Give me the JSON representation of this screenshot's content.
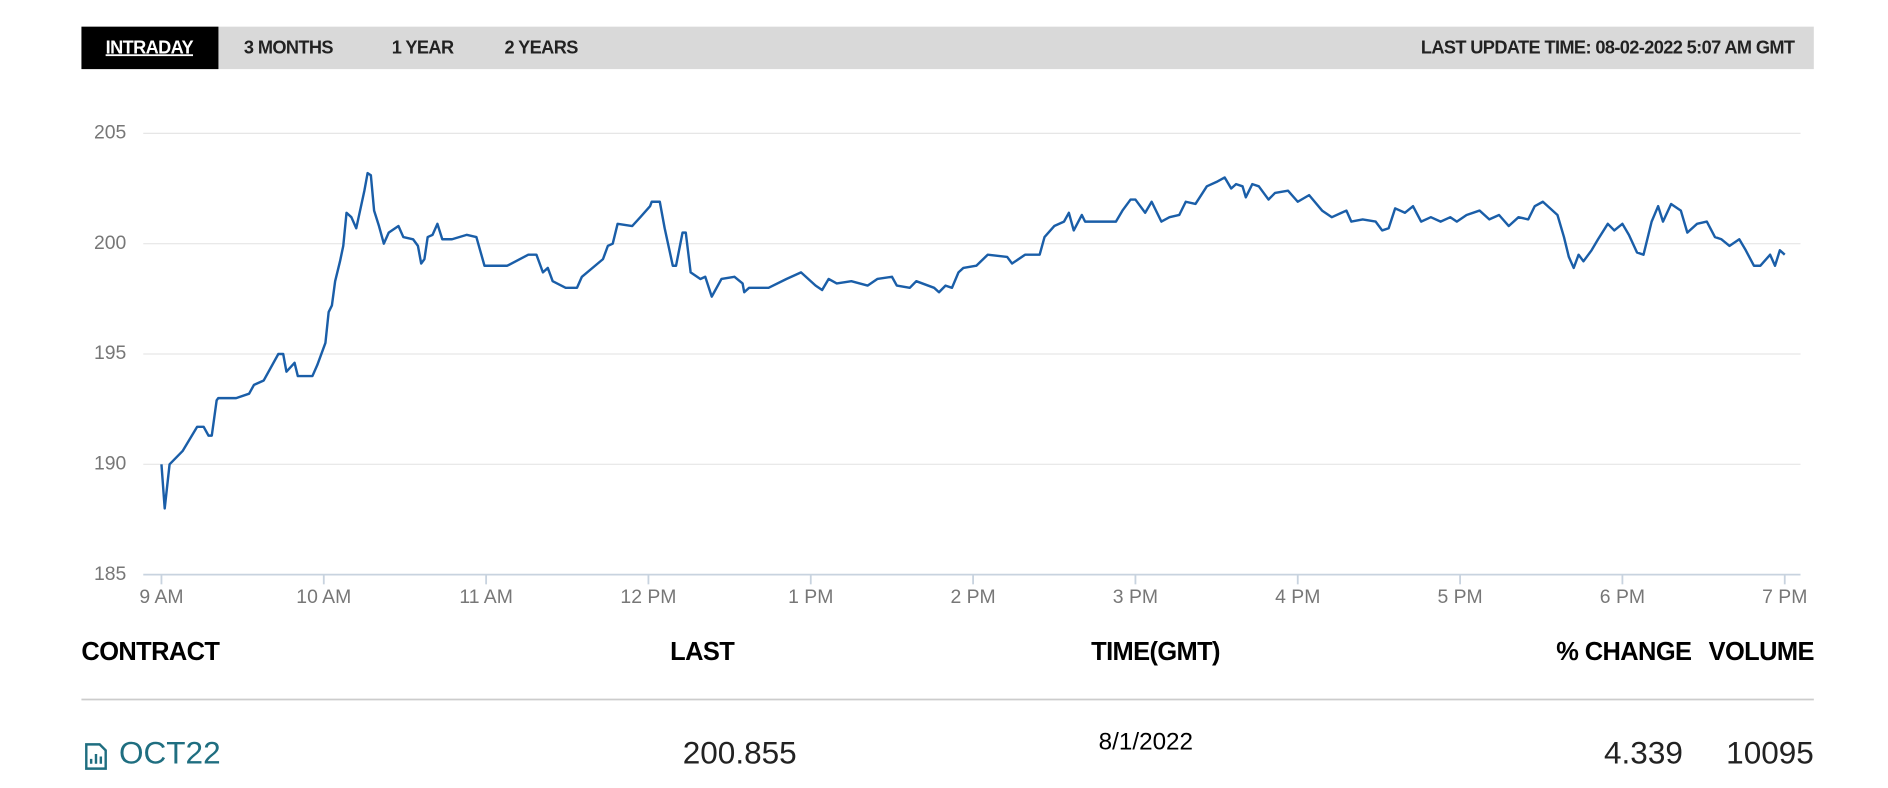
{
  "tabs": [
    "INTRADAY",
    "3 MONTHS",
    "1 YEAR",
    "2 YEARS"
  ],
  "last_update": "LAST UPDATE TIME: 08-02-2022 5:07 AM GMT",
  "chart_data": {
    "type": "line",
    "x": [
      9.0,
      9.02,
      9.05,
      9.13,
      9.22,
      9.26,
      9.29,
      9.31,
      9.34,
      9.35,
      9.46,
      9.54,
      9.57,
      9.63,
      9.72,
      9.75,
      9.77,
      9.82,
      9.84,
      9.93,
      9.96,
      10.01,
      10.03,
      10.05,
      10.07,
      10.1,
      10.12,
      10.14,
      10.17,
      10.2,
      10.25,
      10.27,
      10.29,
      10.31,
      10.34,
      10.37,
      10.4,
      10.46,
      10.49,
      10.55,
      10.58,
      10.6,
      10.62,
      10.64,
      10.67,
      10.7,
      10.73,
      10.79,
      10.88,
      10.94,
      10.99,
      11.13,
      11.26,
      11.31,
      11.35,
      11.38,
      11.41,
      11.49,
      11.56,
      11.59,
      11.72,
      11.75,
      11.78,
      11.81,
      11.9,
      11.95,
      12.01,
      12.02,
      12.07,
      12.1,
      12.15,
      12.17,
      12.21,
      12.23,
      12.26,
      12.32,
      12.35,
      12.39,
      12.45,
      12.53,
      12.58,
      12.59,
      12.62,
      12.74,
      12.85,
      12.94,
      13.03,
      13.07,
      13.11,
      13.16,
      13.25,
      13.35,
      13.41,
      13.5,
      13.53,
      13.61,
      13.65,
      13.76,
      13.79,
      13.83,
      13.87,
      13.91,
      13.94,
      14.02,
      14.09,
      14.21,
      14.24,
      14.32,
      14.41,
      14.44,
      14.5,
      14.56,
      14.59,
      14.62,
      14.67,
      14.69,
      14.88,
      14.92,
      14.97,
      15.0,
      15.06,
      15.1,
      15.16,
      15.21,
      15.27,
      15.31,
      15.37,
      15.44,
      15.5,
      15.55,
      15.59,
      15.62,
      15.66,
      15.68,
      15.72,
      15.76,
      15.82,
      15.86,
      15.94,
      16.0,
      16.07,
      16.15,
      16.21,
      16.27,
      16.3,
      16.33,
      16.4,
      16.48,
      16.52,
      16.56,
      16.6,
      16.66,
      16.71,
      16.76,
      16.82,
      16.88,
      16.94,
      16.98,
      17.04,
      17.12,
      17.18,
      17.24,
      17.3,
      17.36,
      17.42,
      17.46,
      17.51,
      17.6,
      17.64,
      17.67,
      17.7,
      17.73,
      17.76,
      17.81,
      17.85,
      17.91,
      17.95,
      18.0,
      18.04,
      18.09,
      18.13,
      18.18,
      18.22,
      18.25,
      18.3,
      18.36,
      18.4,
      18.46,
      18.52,
      18.57,
      18.61,
      18.66,
      18.72,
      18.76,
      18.81,
      18.85,
      18.91,
      18.94,
      18.97,
      19.0
    ],
    "series": [
      {
        "color": "#1a5ea8",
        "values": [
          190.0,
          188.0,
          190.0,
          190.6,
          191.7,
          191.7,
          191.3,
          191.3,
          192.9,
          193.0,
          193.0,
          193.2,
          193.6,
          193.8,
          195.0,
          195.0,
          194.2,
          194.6,
          194.0,
          194.0,
          194.5,
          195.5,
          196.9,
          197.2,
          198.3,
          199.2,
          199.9,
          201.4,
          201.2,
          200.7,
          202.4,
          203.2,
          203.1,
          201.5,
          200.8,
          200.0,
          200.5,
          200.8,
          200.3,
          200.2,
          199.9,
          199.1,
          199.3,
          200.3,
          200.4,
          200.9,
          200.2,
          200.2,
          200.4,
          200.3,
          199.0,
          199.0,
          199.5,
          199.5,
          198.7,
          198.9,
          198.3,
          198.0,
          198.0,
          198.5,
          199.3,
          199.9,
          200.0,
          200.9,
          200.8,
          201.2,
          201.7,
          201.9,
          201.9,
          200.7,
          199.0,
          199.0,
          200.5,
          200.5,
          198.7,
          198.4,
          198.5,
          197.6,
          198.4,
          198.5,
          198.2,
          197.8,
          198.0,
          198.0,
          198.4,
          198.7,
          198.1,
          197.9,
          198.4,
          198.2,
          198.3,
          198.1,
          198.4,
          198.5,
          198.1,
          198.0,
          198.3,
          198.0,
          197.8,
          198.1,
          198.0,
          198.7,
          198.9,
          199.0,
          199.5,
          199.4,
          199.1,
          199.5,
          199.5,
          200.3,
          200.8,
          201.0,
          201.4,
          200.6,
          201.3,
          201.0,
          201.0,
          201.5,
          202.0,
          202.0,
          201.4,
          201.9,
          201.0,
          201.2,
          201.3,
          201.9,
          201.8,
          202.6,
          202.8,
          203.0,
          202.5,
          202.7,
          202.6,
          202.1,
          202.7,
          202.6,
          202.0,
          202.3,
          202.4,
          201.9,
          202.2,
          201.5,
          201.2,
          201.4,
          201.5,
          201.0,
          201.1,
          201.0,
          200.6,
          200.7,
          201.6,
          201.4,
          201.7,
          201.0,
          201.2,
          201.0,
          201.2,
          201.0,
          201.3,
          201.5,
          201.1,
          201.3,
          200.8,
          201.2,
          201.1,
          201.7,
          201.9,
          201.3,
          200.3,
          199.4,
          198.9,
          199.5,
          199.2,
          199.7,
          200.2,
          200.9,
          200.6,
          200.9,
          200.4,
          199.6,
          199.5,
          201.0,
          201.7,
          201.0,
          201.8,
          201.5,
          200.5,
          200.9,
          201.0,
          200.3,
          200.2,
          199.9,
          200.2,
          199.7,
          199.0,
          199.0,
          199.5,
          199.0,
          199.7,
          199.5
        ]
      }
    ],
    "xlim": [
      9,
      19
    ],
    "xticks": [
      {
        "value": 9,
        "label": "9 AM"
      },
      {
        "value": 10,
        "label": "10 AM"
      },
      {
        "value": 11,
        "label": "11 AM"
      },
      {
        "value": 12,
        "label": "12 PM"
      },
      {
        "value": 13,
        "label": "1 PM"
      },
      {
        "value": 14,
        "label": "2 PM"
      },
      {
        "value": 15,
        "label": "3 PM"
      },
      {
        "value": 16,
        "label": "4 PM"
      },
      {
        "value": 17,
        "label": "5 PM"
      },
      {
        "value": 18,
        "label": "6 PM"
      },
      {
        "value": 19,
        "label": "7 PM"
      }
    ],
    "ylim": [
      185,
      205
    ],
    "yticks": [
      185,
      190,
      195,
      200,
      205
    ],
    "grid": true
  },
  "table": {
    "headers": [
      "CONTRACT",
      "LAST",
      "TIME(GMT)",
      "% CHANGE",
      "VOLUME"
    ],
    "rows": [
      [
        "OCT22",
        "200.855",
        "8/1/2022",
        "4.339",
        "10095"
      ]
    ]
  }
}
